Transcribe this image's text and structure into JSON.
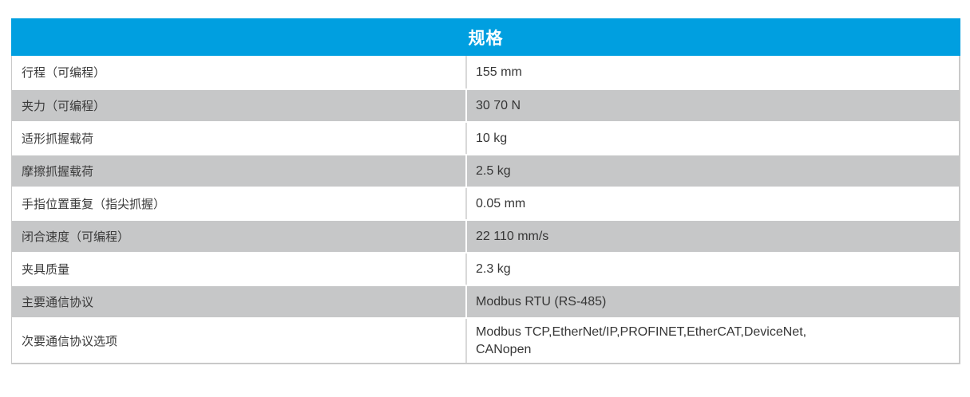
{
  "table": {
    "title": "规格",
    "rows": [
      {
        "label": "行程（可编程）",
        "value": "155 mm"
      },
      {
        "label": "夹力（可编程）",
        "value": "30 70 N"
      },
      {
        "label": "适形抓握载荷",
        "value": "10 kg"
      },
      {
        "label": "摩擦抓握载荷",
        "value": "2.5 kg"
      },
      {
        "label": "手指位置重复（指尖抓握）",
        "value": "0.05 mm"
      },
      {
        "label": "闭合速度（可编程）",
        "value": "22 110 mm/s"
      },
      {
        "label": "夹具质量",
        "value": "2.3 kg"
      },
      {
        "label": "主要通信协议",
        "value": "Modbus RTU (RS-485)"
      },
      {
        "label": "次要通信协议选项",
        "value": "Modbus TCP,EtherNet/IP,PROFINET,EtherCAT,DeviceNet,\nCANopen"
      }
    ],
    "colors": {
      "header_bg": "#009FE0",
      "header_text": "#FFFFFF",
      "row_bg": "#FFFFFF",
      "row_alt_bg": "#C6C7C8",
      "text": "#3A3A3A",
      "border": "#C9C9C9",
      "divider_on_white": "#D9D9D9",
      "divider_on_gray": "#FFFFFF"
    }
  }
}
